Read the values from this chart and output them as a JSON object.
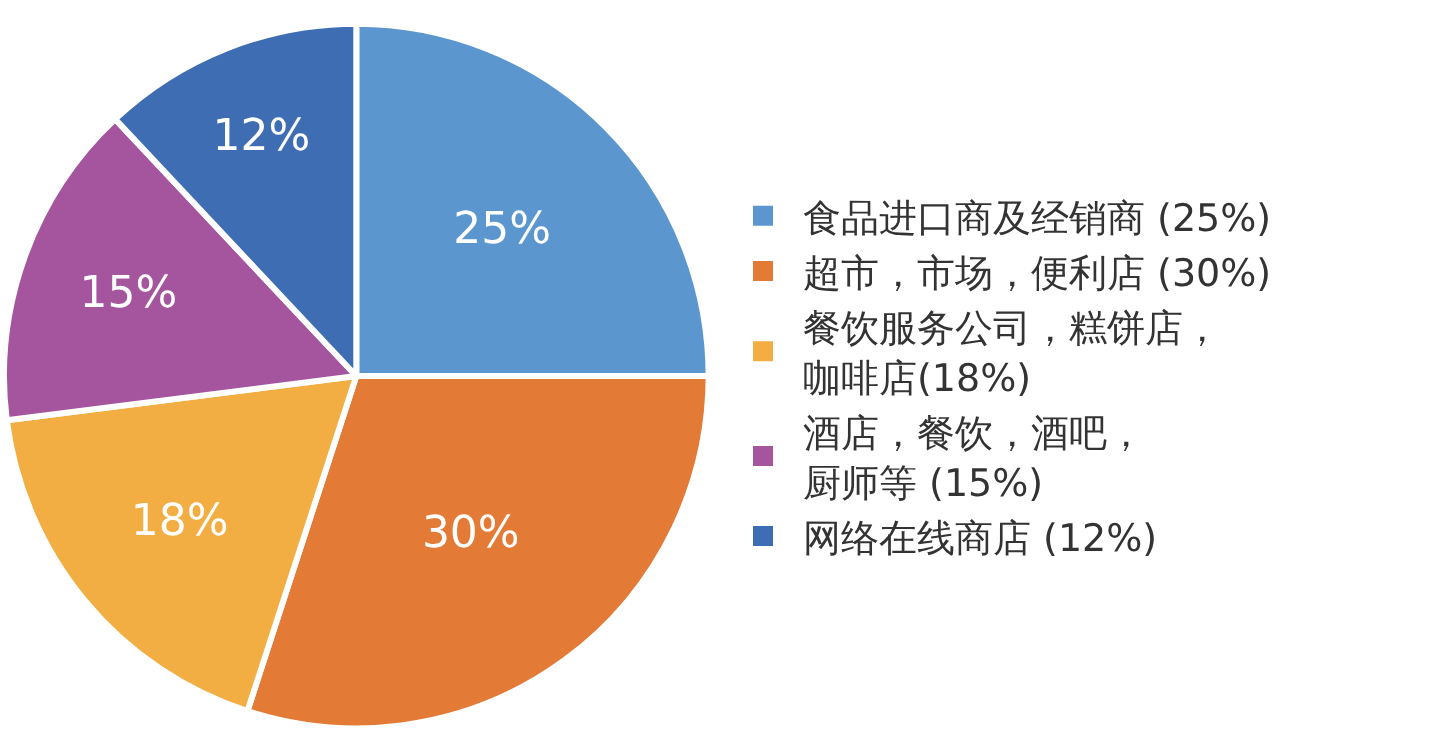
{
  "chart_data": {
    "type": "pie",
    "categories": [
      "食品进口商及经销商 (25%)",
      "超市，市场，便利店 (30%)",
      "餐饮服务公司，糕饼店，咖啡店(18%)",
      "酒店，餐饮，酒吧，厨师等 (15%)",
      "网络在线商店 (12%)"
    ],
    "values": [
      25,
      30,
      18,
      15,
      12
    ],
    "value_labels": [
      "25%",
      "30%",
      "18%",
      "15%",
      "12%"
    ],
    "colors": [
      "#5b96cf",
      "#e37a35",
      "#f2ae42",
      "#a5559d",
      "#3f6db4"
    ],
    "legend": "right"
  }
}
